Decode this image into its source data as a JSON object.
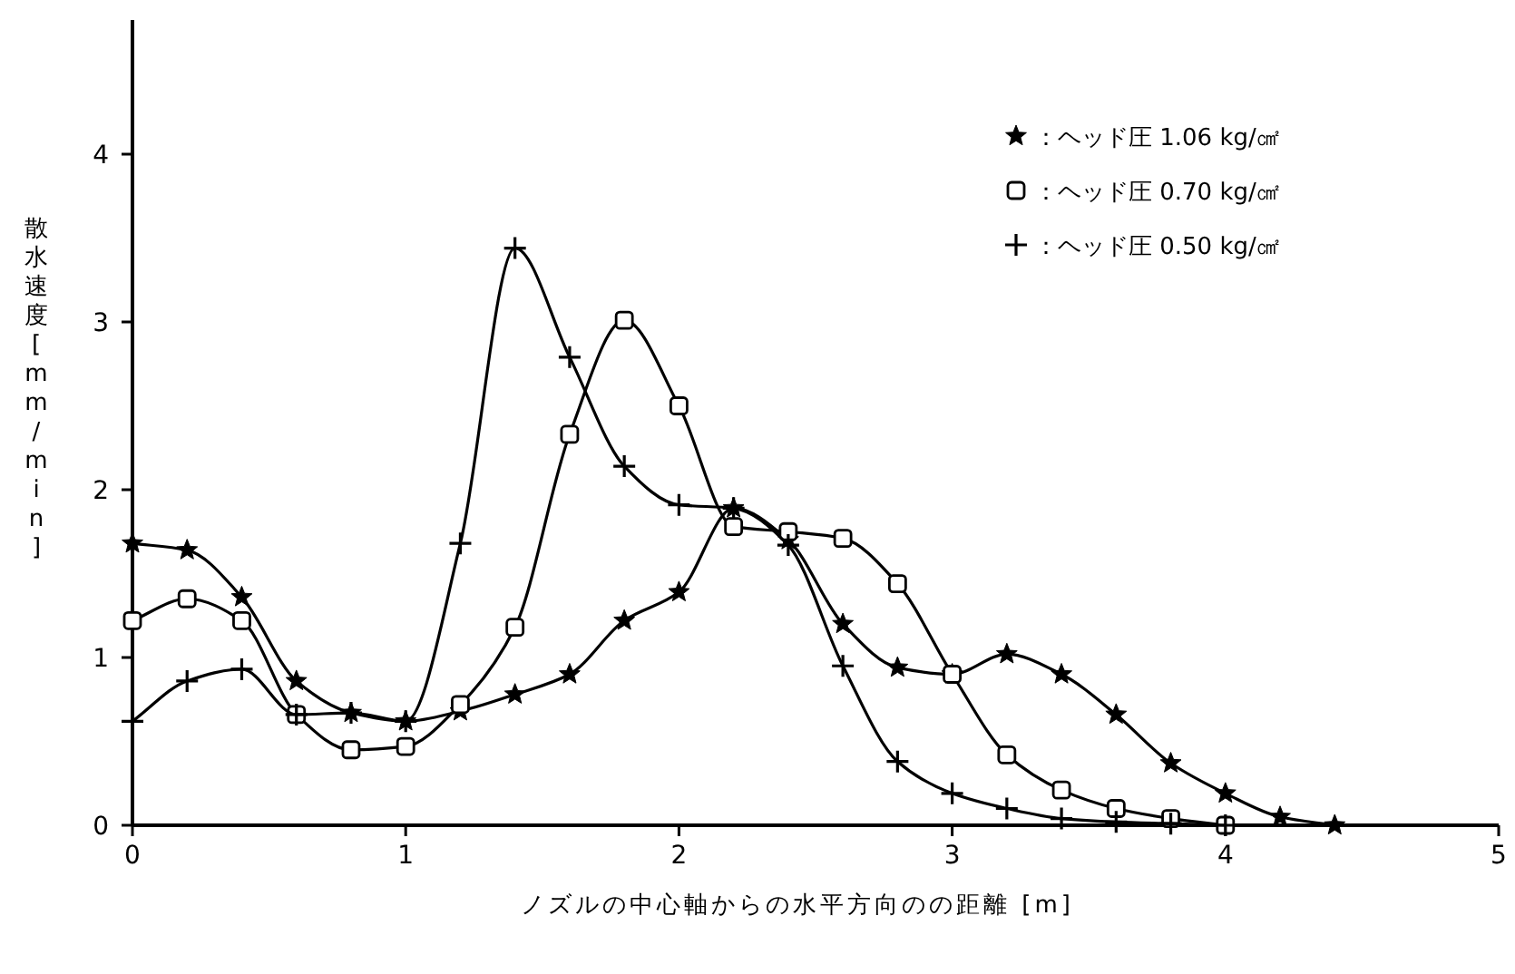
{
  "chart_data": {
    "type": "line",
    "xlabel": "ノズルの中心軸からの水平方向のの距離 [m]",
    "ylabel": "散水速度 [mm/min]",
    "xlim": [
      0,
      5
    ],
    "ylim": [
      0,
      4.8
    ],
    "xticks": [
      0,
      1,
      2,
      3,
      4,
      5
    ],
    "yticks": [
      0,
      1,
      2,
      3,
      4
    ],
    "grid": false,
    "legend": "top right",
    "series": [
      {
        "name": "：ヘッド圧 1.06 kg/㎠",
        "color": "#000000",
        "marker": "star",
        "x": [
          0,
          0.2,
          0.4,
          0.6,
          0.8,
          1.0,
          1.2,
          1.4,
          1.6,
          1.8,
          2.0,
          2.2,
          2.4,
          2.6,
          2.8,
          3.0,
          3.2,
          3.4,
          3.6,
          3.8,
          4.0,
          4.2,
          4.4
        ],
        "values": [
          1.68,
          1.64,
          1.36,
          0.86,
          0.67,
          0.62,
          0.68,
          0.78,
          0.9,
          1.22,
          1.39,
          1.89,
          1.7,
          1.2,
          0.94,
          0.9,
          1.02,
          0.9,
          0.66,
          0.37,
          0.19,
          0.05,
          0
        ]
      },
      {
        "name": "：ヘッド圧 0.70 kg/㎠",
        "color": "#000000",
        "marker": "square",
        "x": [
          0,
          0.2,
          0.4,
          0.6,
          0.8,
          1.0,
          1.2,
          1.4,
          1.6,
          1.8,
          2.0,
          2.2,
          2.4,
          2.6,
          2.8,
          3.0,
          3.2,
          3.4,
          3.6,
          3.8,
          4.0
        ],
        "values": [
          1.22,
          1.35,
          1.22,
          0.66,
          0.45,
          0.47,
          0.72,
          1.18,
          2.33,
          3.01,
          2.5,
          1.78,
          1.75,
          1.71,
          1.44,
          0.9,
          0.42,
          0.21,
          0.1,
          0.04,
          0
        ]
      },
      {
        "name": "：ヘッド圧 0.50 kg/㎠",
        "color": "#000000",
        "marker": "cross",
        "x": [
          0,
          0.2,
          0.4,
          0.6,
          0.8,
          1.0,
          1.2,
          1.4,
          1.6,
          1.8,
          2.0,
          2.2,
          2.4,
          2.6,
          2.8,
          3.0,
          3.2,
          3.4,
          3.6,
          3.8,
          4.0
        ],
        "values": [
          0.62,
          0.86,
          0.93,
          0.66,
          0.67,
          0.62,
          1.68,
          3.44,
          2.79,
          2.14,
          1.91,
          1.89,
          1.67,
          0.95,
          0.38,
          0.19,
          0.1,
          0.04,
          0.02,
          0.01,
          0
        ]
      }
    ]
  }
}
